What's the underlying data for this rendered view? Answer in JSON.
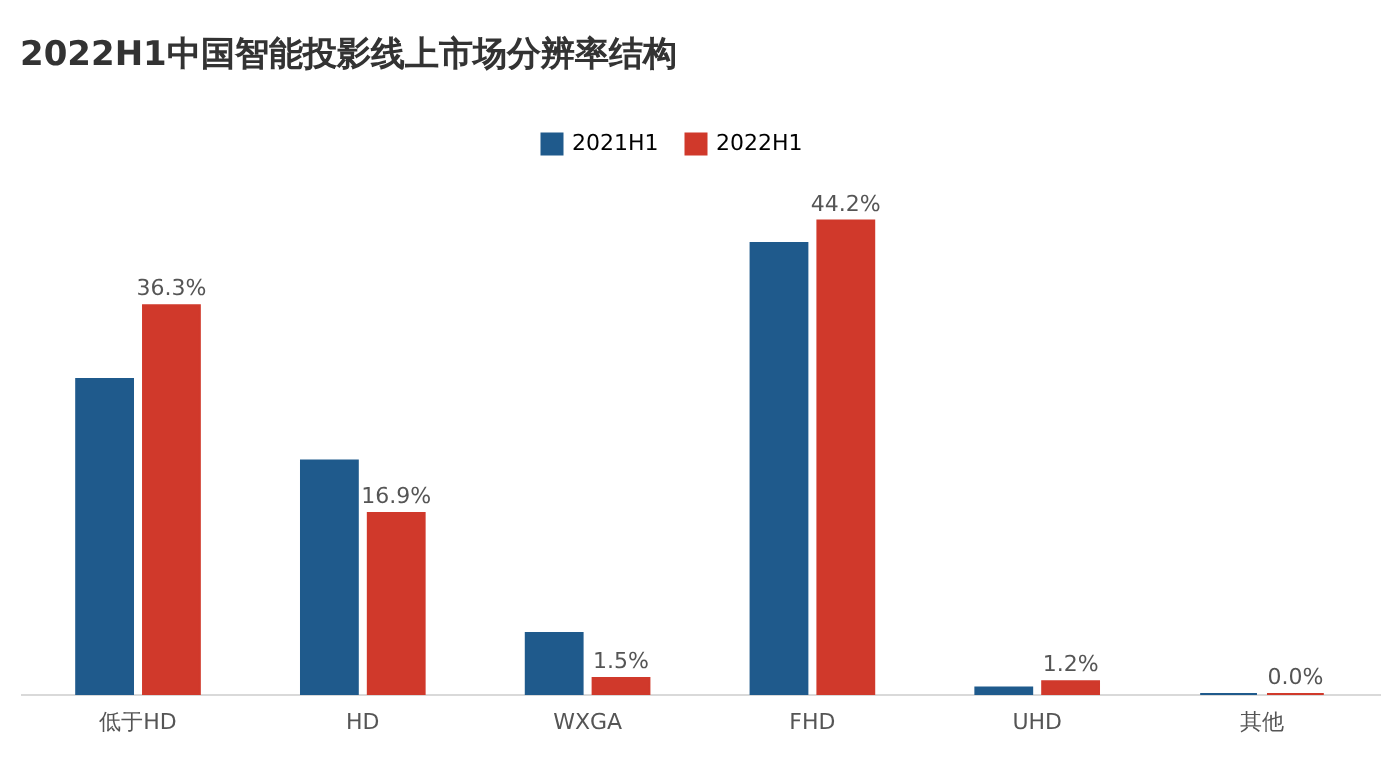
{
  "chart_data": {
    "type": "bar",
    "title": "2022H1中国智能投影线上市场分辨率结构",
    "categories": [
      "低于HD",
      "HD",
      "WXGA",
      "FHD",
      "UHD",
      "其他"
    ],
    "series": [
      {
        "name": "2021H1",
        "color": "#1f5a8c",
        "values": [
          29.4,
          21.8,
          5.7,
          42.1,
          0.6,
          0
        ]
      },
      {
        "name": "2022H1",
        "color": "#d0392b",
        "values": [
          36.3,
          16.9,
          1.5,
          44.2,
          1.2,
          0.0
        ],
        "value_labels": [
          "36.3%",
          "16.9%",
          "1.5%",
          "44.2%",
          "1.2%",
          "0.0%"
        ]
      }
    ],
    "legend": "top",
    "grid": false,
    "tick_labels": "x"
  }
}
